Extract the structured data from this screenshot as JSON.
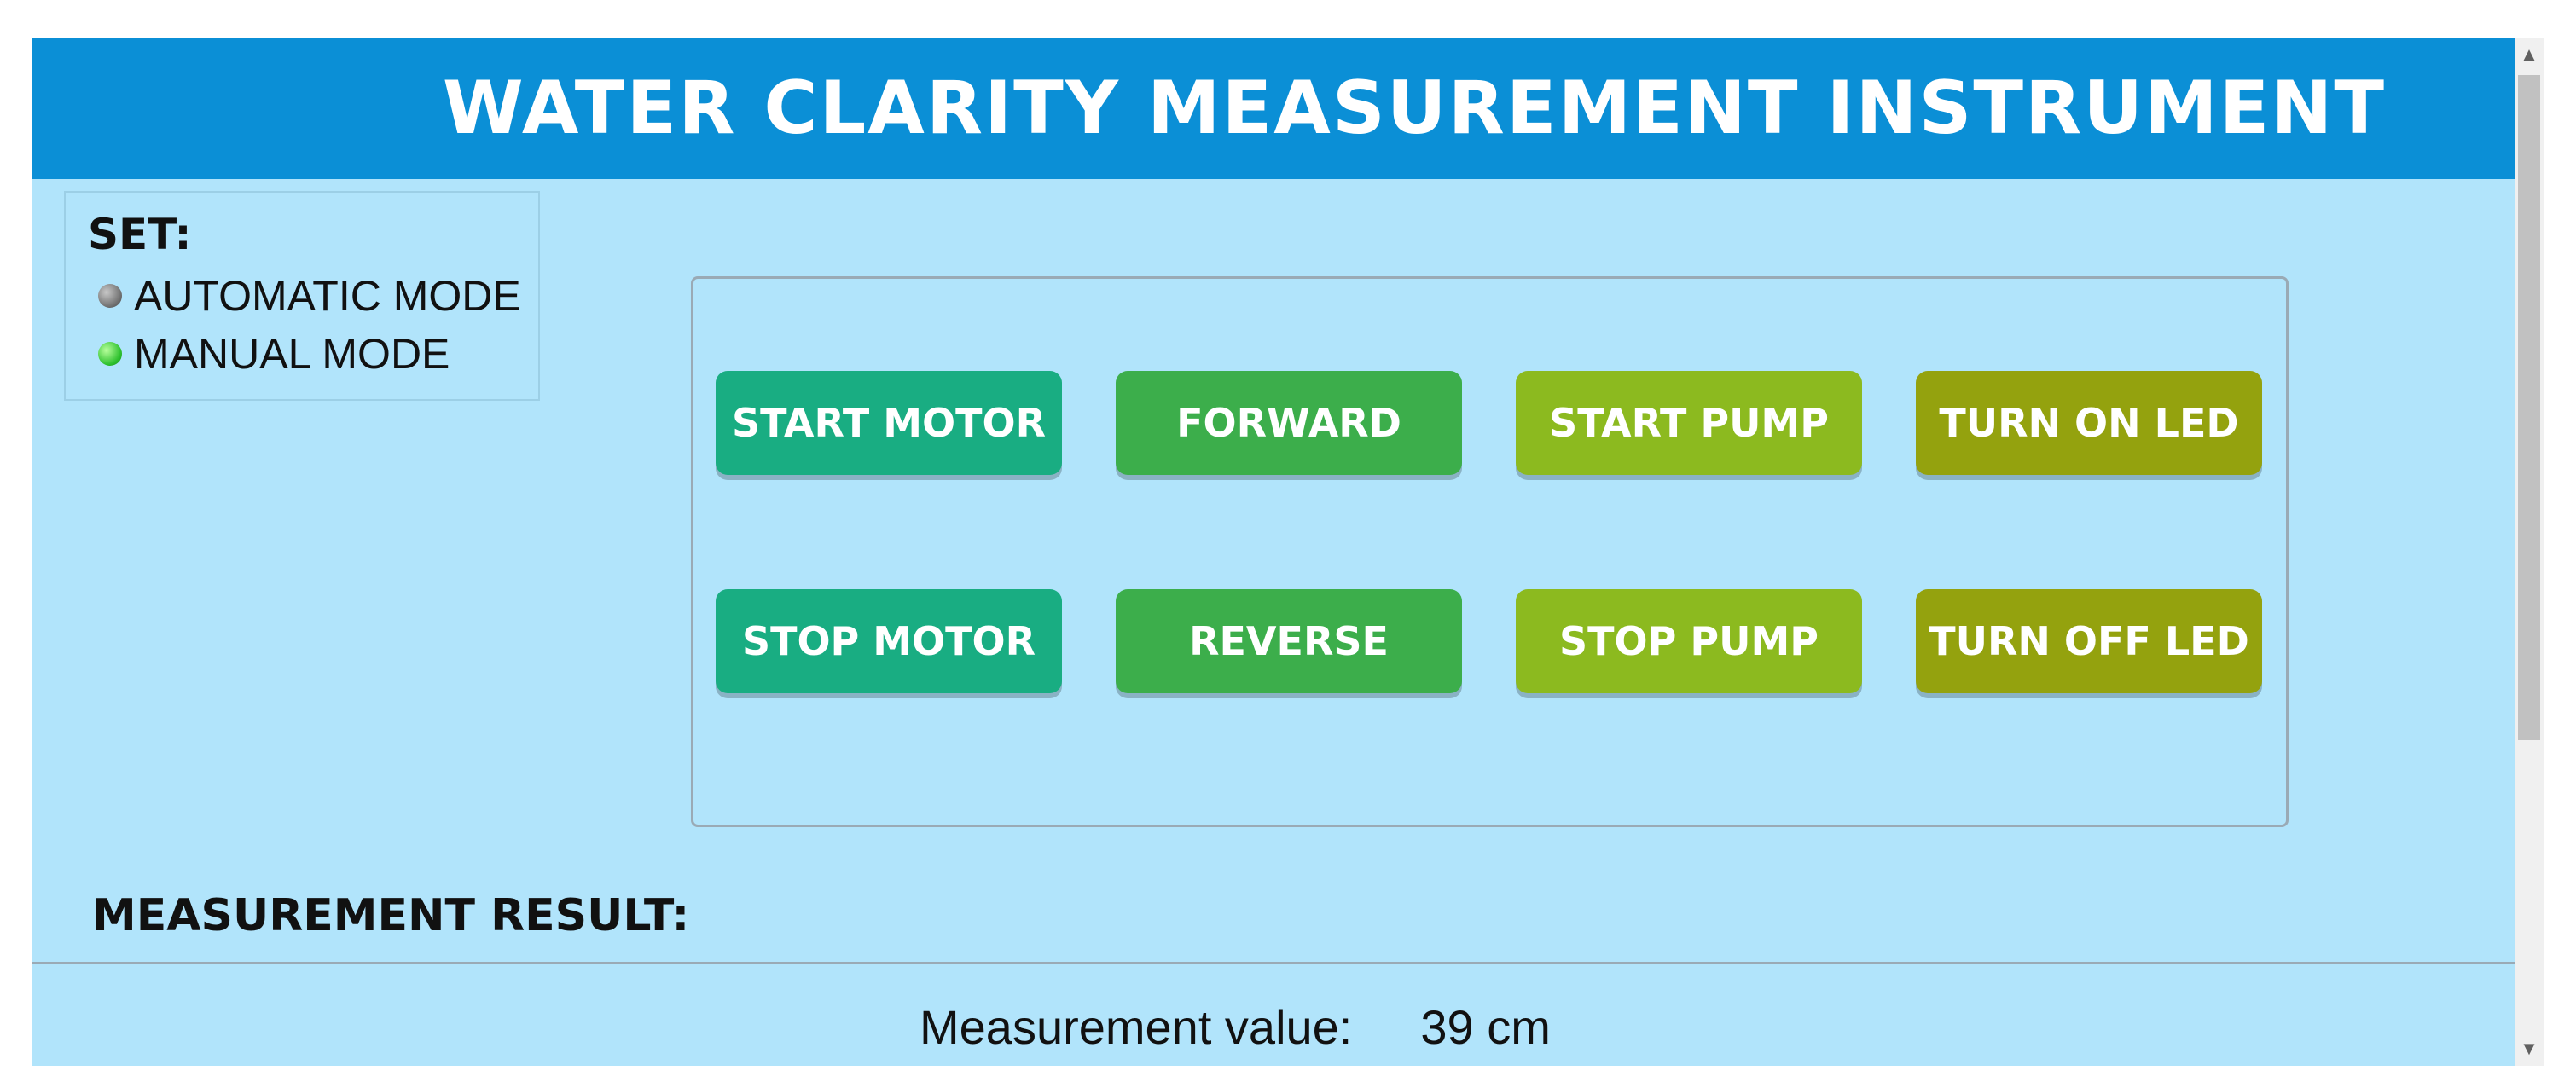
{
  "header": {
    "title": "WATER CLARITY MEASUREMENT INSTRUMENT"
  },
  "set_panel": {
    "label": "SET:",
    "modes": [
      {
        "label": "AUTOMATIC MODE",
        "indicator": "grey-dot-icon",
        "active": false
      },
      {
        "label": "MANUAL MODE",
        "indicator": "green-dot-icon",
        "active": true
      }
    ]
  },
  "controls": {
    "start_motor": "START MOTOR",
    "forward": "FORWARD",
    "start_pump": "START PUMP",
    "turn_on_led": "TURN ON LED",
    "stop_motor": "STOP MOTOR",
    "reverse": "REVERSE",
    "stop_pump": "STOP PUMP",
    "turn_off_led": "TURN OFF LED"
  },
  "result": {
    "label": "MEASUREMENT RESULT:",
    "measurement_label": "Measurement value:",
    "measurement_value": "39 cm"
  },
  "colors": {
    "header": "#0b8fd6",
    "background": "#b1e4fb",
    "motor_buttons": "#19ad82",
    "direction_buttons": "#3cae4b",
    "pump_buttons": "#8cba1f",
    "led_buttons": "#94a20e"
  },
  "scrollbar": {
    "up_icon": "chevron-up-icon",
    "down_icon": "chevron-down-icon"
  }
}
